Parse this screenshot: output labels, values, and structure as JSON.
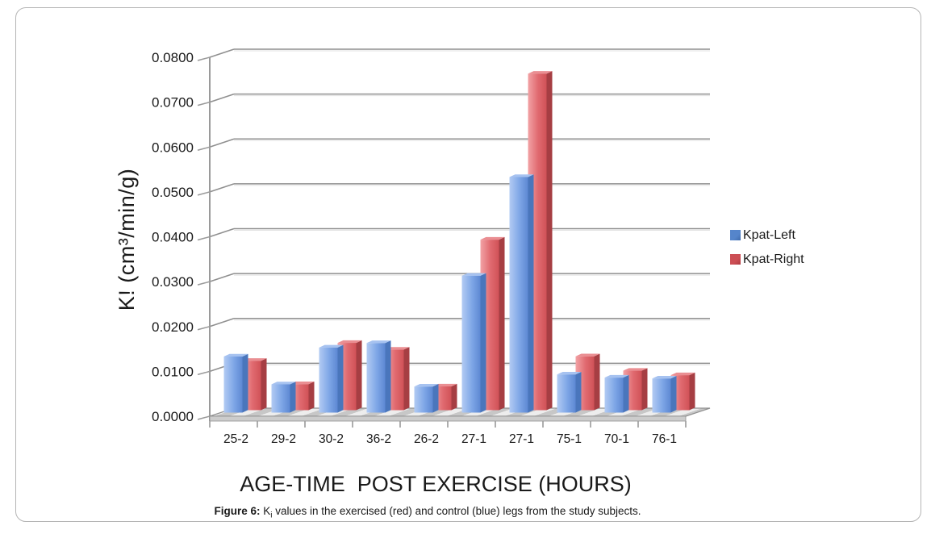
{
  "figure": {
    "caption": {
      "label": "Figure 6:",
      "k": " K",
      "subscript": "i",
      "rest": " values in the exercised (red) and control (blue) legs from the study subjects."
    }
  },
  "chart_data": {
    "type": "bar",
    "style": "3d-grouped",
    "title": "",
    "xlabel": "AGE-TIME  POST EXERCISE (HOURS)",
    "ylabel": "K! (cm³/min/g)",
    "categories": [
      "25-2",
      "29-2",
      "30-2",
      "36-2",
      "26-2",
      "27-1",
      "27-1",
      "75-1",
      "70-1",
      "76-1"
    ],
    "series": [
      {
        "name": "Kpat-Left",
        "color": "#6d97dd",
        "values": [
          0.0125,
          0.0063,
          0.0145,
          0.0155,
          0.0058,
          0.0305,
          0.0525,
          0.0085,
          0.0078,
          0.0076
        ]
      },
      {
        "name": "Kpat-Right",
        "color": "#d85c61",
        "values": [
          0.011,
          0.0058,
          0.015,
          0.0135,
          0.0053,
          0.038,
          0.075,
          0.012,
          0.0088,
          0.0078
        ]
      }
    ],
    "ylim": [
      0,
      0.08
    ],
    "ytick_step": 0.01,
    "ytick_labels": [
      "0.0000",
      "0.0100",
      "0.0200",
      "0.0300",
      "0.0400",
      "0.0500",
      "0.0600",
      "0.0700",
      "0.0800"
    ],
    "grid": true,
    "legend_position": "right"
  },
  "colors": {
    "bar_left_front_light": "#b2cbf3",
    "bar_left_front_mid": "#7ea6e6",
    "bar_left_front_dark": "#5d88d3",
    "bar_left_side": "#4a76bc",
    "bar_left_top": "#a6c2f0",
    "bar_right_front_light": "#f2a2a5",
    "bar_right_front_mid": "#e0696f",
    "bar_right_front_dark": "#d05257",
    "bar_right_side": "#a63e43",
    "bar_right_top": "#ea8e92",
    "legend_left_swatch": "#5585cb",
    "legend_right_swatch": "#cc4e54",
    "gridline": "#8f8f8f",
    "gridline_shadow": "#e2e2e2",
    "axis": "#9a9a9a",
    "floor_light": "#ededed",
    "floor_dark": "#c7c7c7",
    "floor_front": "#cccccc",
    "text": "#1a1a1a",
    "panel_border": "#b5b5b5"
  }
}
